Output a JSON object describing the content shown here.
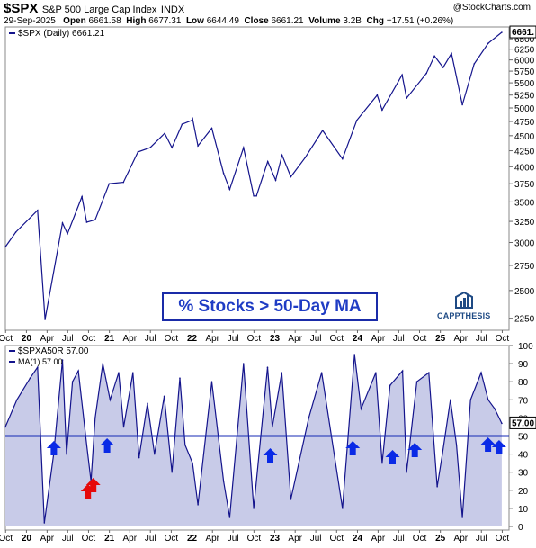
{
  "header": {
    "symbol": "$SPX",
    "name": "S&P 500 Large Cap Index",
    "exchange": "INDX",
    "brand": "@StockCharts.com",
    "date": "29-Sep-2025",
    "open_label": "Open",
    "open": "6661.58",
    "high_label": "High",
    "high": "6677.31",
    "low_label": "Low",
    "low": "6644.49",
    "close_label": "Close",
    "close": "6661.21",
    "volume_label": "Volume",
    "volume": "3.2B",
    "chg_label": "Chg",
    "chg": "+17.51 (+0.26%)"
  },
  "annotation": {
    "title": "% Stocks > 50-Day MA",
    "logo": "CAPPTHESIS",
    "color_text": "#1f3cc4",
    "color_border": "#1a2ba8"
  },
  "chart_data": [
    {
      "type": "line",
      "legend": "$SPX (Daily) 6661.21",
      "last_value_label": "6661.",
      "color": "#14148c",
      "x_ticks": [
        "Oct",
        "20",
        "Apr",
        "Jul",
        "Oct",
        "21",
        "Apr",
        "Jul",
        "Oct",
        "22",
        "Apr",
        "Jul",
        "Oct",
        "23",
        "Apr",
        "Jul",
        "Oct",
        "24",
        "Apr",
        "Jul",
        "Oct",
        "25",
        "Apr",
        "Jul",
        "Oct"
      ],
      "x_tick_dates": [
        "2019-10",
        "2020-01",
        "2020-04",
        "2020-07",
        "2020-10",
        "2021-01",
        "2021-04",
        "2021-07",
        "2021-10",
        "2022-01",
        "2022-04",
        "2022-07",
        "2022-10",
        "2023-01",
        "2023-04",
        "2023-07",
        "2023-10",
        "2024-01",
        "2024-04",
        "2024-07",
        "2024-10",
        "2025-01",
        "2025-04",
        "2025-07",
        "2025-10"
      ],
      "y_ticks": [
        2250,
        2500,
        2750,
        3000,
        3250,
        3500,
        3750,
        4000,
        4250,
        4500,
        4750,
        5000,
        5250,
        5500,
        5750,
        6000,
        6250,
        6500
      ],
      "y_scale": "log",
      "ylim": [
        2150,
        6800
      ],
      "x": [
        "2019-09-30",
        "2019-11-15",
        "2020-02-19",
        "2020-03-23",
        "2020-06-08",
        "2020-06-30",
        "2020-09-02",
        "2020-09-23",
        "2020-10-30",
        "2020-12-31",
        "2021-03-04",
        "2021-05-07",
        "2021-06-30",
        "2021-09-02",
        "2021-10-04",
        "2021-11-18",
        "2021-12-31",
        "2022-01-03",
        "2022-01-27",
        "2022-03-29",
        "2022-05-20",
        "2022-06-16",
        "2022-08-16",
        "2022-09-30",
        "2022-10-12",
        "2022-12-01",
        "2023-01-05",
        "2023-02-02",
        "2023-03-13",
        "2023-05-15",
        "2023-07-31",
        "2023-10-27",
        "2023-12-29",
        "2024-03-28",
        "2024-04-19",
        "2024-07-16",
        "2024-08-05",
        "2024-10-31",
        "2024-12-06",
        "2025-01-13",
        "2025-02-19",
        "2025-04-08",
        "2025-05-30",
        "2025-07-31",
        "2025-09-29"
      ],
      "values": [
        2950,
        3120,
        3390,
        2240,
        3230,
        3100,
        3570,
        3240,
        3270,
        3750,
        3770,
        4230,
        4300,
        4540,
        4300,
        4700,
        4770,
        4800,
        4330,
        4630,
        3900,
        3670,
        4300,
        3580,
        3580,
        4080,
        3800,
        4180,
        3850,
        4140,
        4590,
        4120,
        4770,
        5250,
        4960,
        5670,
        5190,
        5700,
        6090,
        5830,
        6150,
        5060,
        5910,
        6390,
        6661
      ]
    },
    {
      "type": "area",
      "legend": "$SPXA50R 57.00",
      "ma_legend": "MA(1) 57.00",
      "last_value_label": "57.00",
      "reference_line": 50,
      "color_line": "#14148c",
      "color_fill": "#c8cbe8",
      "color_ref": "#1428b4",
      "y_ticks": [
        0,
        10,
        20,
        30,
        40,
        50,
        60,
        70,
        80,
        90,
        100
      ],
      "ylim": [
        -2,
        100
      ],
      "x": [
        "2019-09-30",
        "2019-11-20",
        "2020-01-17",
        "2020-02-19",
        "2020-03-20",
        "2020-04-30",
        "2020-06-08",
        "2020-06-26",
        "2020-07-22",
        "2020-08-17",
        "2020-09-23",
        "2020-10-12",
        "2020-10-30",
        "2020-12-03",
        "2021-01-04",
        "2021-02-11",
        "2021-03-05",
        "2021-04-15",
        "2021-05-12",
        "2021-06-18",
        "2021-07-19",
        "2021-08-31",
        "2021-10-04",
        "2021-11-08",
        "2021-12-01",
        "2022-01-03",
        "2022-01-27",
        "2022-03-29",
        "2022-05-20",
        "2022-06-16",
        "2022-08-16",
        "2022-09-30",
        "2022-11-30",
        "2022-12-21",
        "2023-02-01",
        "2023-03-13",
        "2023-05-31",
        "2023-07-27",
        "2023-10-27",
        "2023-12-19",
        "2024-01-17",
        "2024-03-22",
        "2024-04-19",
        "2024-05-24",
        "2024-07-18",
        "2024-08-05",
        "2024-09-19",
        "2024-11-11",
        "2024-12-18",
        "2025-01-10",
        "2025-02-14",
        "2025-03-13",
        "2025-04-08",
        "2025-05-14",
        "2025-06-30",
        "2025-07-31",
        "2025-08-29",
        "2025-09-29"
      ],
      "values": [
        55,
        70,
        82,
        88,
        2,
        40,
        92,
        40,
        80,
        86,
        45,
        25,
        60,
        90,
        70,
        85,
        55,
        85,
        38,
        68,
        40,
        72,
        30,
        82,
        45,
        35,
        12,
        80,
        25,
        5,
        90,
        10,
        88,
        55,
        85,
        15,
        60,
        85,
        10,
        95,
        65,
        85,
        35,
        78,
        86,
        30,
        80,
        85,
        22,
        40,
        70,
        45,
        5,
        70,
        85,
        70,
        65,
        57
      ]
    }
  ],
  "markers": {
    "blue_up_dates": [
      "2020-05-01",
      "2020-12-22",
      "2022-12-12",
      "2023-12-11",
      "2024-06-04",
      "2024-09-10",
      "2025-07-30",
      "2025-09-17"
    ],
    "red_up_dates": [
      "2020-09-28",
      "2020-10-22"
    ],
    "blue": "#0a2ae6",
    "red": "#e60a0a"
  }
}
